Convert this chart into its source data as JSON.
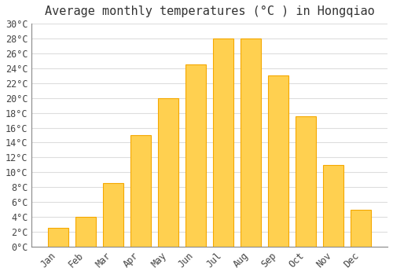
{
  "title": "Average monthly temperatures (°C ) in Hongqiao",
  "months": [
    "Jan",
    "Feb",
    "Mar",
    "Apr",
    "May",
    "Jun",
    "Jul",
    "Aug",
    "Sep",
    "Oct",
    "Nov",
    "Dec"
  ],
  "temperatures": [
    2.5,
    4.0,
    8.5,
    15.0,
    20.0,
    24.5,
    28.0,
    28.0,
    23.0,
    17.5,
    11.0,
    5.0
  ],
  "bar_color_center": "#FFD050",
  "bar_color_edge": "#F5A800",
  "background_color": "#FFFFFF",
  "grid_color": "#DDDDDD",
  "ylim_max": 30,
  "ytick_step": 2,
  "title_fontsize": 11,
  "tick_fontsize": 8.5,
  "font_family": "monospace"
}
